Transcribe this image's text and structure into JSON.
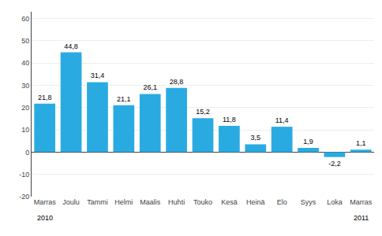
{
  "chart_data": {
    "type": "bar",
    "categories": [
      "Marras",
      "Joulu",
      "Tammi",
      "Helmi",
      "Maalis",
      "Huhti",
      "Touko",
      "Kesä",
      "Heinä",
      "Elo",
      "Syys",
      "Loka",
      "Marras"
    ],
    "values": [
      21.8,
      44.8,
      31.4,
      21.1,
      26.1,
      28.8,
      15.2,
      11.8,
      3.5,
      11.4,
      1.9,
      -2.2,
      1.1
    ],
    "value_labels": [
      "21,8",
      "44,8",
      "31,4",
      "21,1",
      "26,1",
      "28,8",
      "15,2",
      "11,8",
      "3,5",
      "11,4",
      "1,9",
      "-2,2",
      "1,1"
    ],
    "data_labels": true,
    "color": "#29abe2",
    "ylim": [
      -20,
      63
    ],
    "yticks": [
      -20,
      -10,
      0,
      10,
      20,
      30,
      40,
      50,
      60
    ],
    "grid": true,
    "annotations": [
      {
        "text": "2010",
        "x": 0
      },
      {
        "text": "2011",
        "x": 12
      }
    ]
  }
}
